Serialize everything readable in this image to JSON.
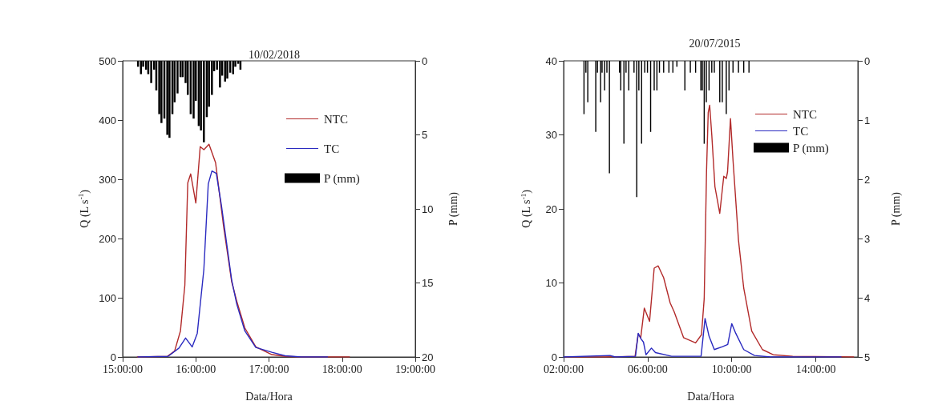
{
  "chart_data": [
    {
      "type": "line",
      "title": "10/02/2018",
      "xlabel": "Data/Hora",
      "ylabel": "Q (L s$^{-1}$)",
      "y2label": "P (mm)",
      "legend": "top right",
      "marker": "none",
      "line_style": "solid",
      "xlim": [
        15,
        19
      ],
      "xticks": [
        {
          "value": 15,
          "label": "15:00:00"
        },
        {
          "value": 16,
          "label": "16:00:00"
        },
        {
          "value": 17,
          "label": "17:00:00"
        },
        {
          "value": 18,
          "label": "18:00:00"
        },
        {
          "value": 19,
          "label": "19:00:00"
        }
      ],
      "ylim": [
        0,
        500
      ],
      "yticks": [
        0,
        100,
        200,
        300,
        400,
        500
      ],
      "y2lim": [
        20,
        0
      ],
      "y2ticks": [
        0,
        5,
        10,
        15,
        20
      ],
      "series": [
        {
          "name": "NTC",
          "color": "#b22a2a",
          "x": [
            15.2,
            15.61,
            15.71,
            15.79,
            15.85,
            15.89,
            15.93,
            16.0,
            16.06,
            16.11,
            16.18,
            16.27,
            16.38,
            16.49,
            16.56,
            16.67,
            16.82,
            17.04,
            17.22,
            17.44,
            18.1
          ],
          "values": [
            0,
            1,
            10,
            44,
            121,
            294,
            309,
            260,
            355,
            350,
            359,
            328,
            220,
            127,
            94,
            49,
            17,
            4,
            1,
            0,
            0
          ]
        },
        {
          "name": "TC",
          "color": "#2a2ac0",
          "x": [
            15.21,
            15.62,
            15.77,
            15.86,
            15.95,
            16.02,
            16.11,
            16.17,
            16.22,
            16.28,
            16.35,
            16.42,
            16.49,
            16.56,
            16.67,
            16.82,
            17.04,
            17.22,
            17.44,
            17.8
          ],
          "values": [
            0,
            1,
            15,
            32,
            17,
            40,
            148,
            292,
            314,
            310,
            256,
            193,
            130,
            89,
            44,
            16,
            8,
            2,
            0,
            0
          ]
        },
        {
          "name": "P (mm)",
          "type": "bar",
          "axis": "y2",
          "color": "#000000",
          "x": [
            15.21,
            15.25,
            15.28,
            15.32,
            15.35,
            15.39,
            15.43,
            15.46,
            15.5,
            15.53,
            15.57,
            15.61,
            15.64,
            15.68,
            15.71,
            15.75,
            15.79,
            15.82,
            15.86,
            15.89,
            15.93,
            15.97,
            16.0,
            16.04,
            16.07,
            16.11,
            16.15,
            16.18,
            16.22,
            16.25,
            16.29,
            16.33,
            16.36,
            16.4,
            16.43,
            16.47,
            16.51,
            16.54,
            16.58,
            16.61
          ],
          "values": [
            0.4,
            0.9,
            0.4,
            0.6,
            0.9,
            1.5,
            0.6,
            2.0,
            3.6,
            4.2,
            3.9,
            5.0,
            5.2,
            3.6,
            2.8,
            2.2,
            1.1,
            1.1,
            1.5,
            2.3,
            3.6,
            3.9,
            2.7,
            4.4,
            4.7,
            5.5,
            3.8,
            3.1,
            2.3,
            0.7,
            0.6,
            1.8,
            1.0,
            1.4,
            1.2,
            0.8,
            0.9,
            0.4,
            0.2,
            0.6
          ]
        }
      ]
    },
    {
      "type": "line",
      "title": "20/07/2015",
      "xlabel": "Data/Hora",
      "ylabel": "Q (L s$^{-1}$)",
      "y2label": "P (mm)",
      "legend": "top right",
      "marker": "none",
      "line_style": "solid",
      "xlim": [
        2,
        16
      ],
      "xticks": [
        {
          "value": 2,
          "label": "02:00:00"
        },
        {
          "value": 6,
          "label": "06:00:00"
        },
        {
          "value": 10,
          "label": "10:00:00"
        },
        {
          "value": 14,
          "label": "14:00:00"
        }
      ],
      "ylim": [
        0,
        40
      ],
      "yticks": [
        0,
        10,
        20,
        30,
        40
      ],
      "y2lim": [
        5,
        0
      ],
      "y2ticks": [
        0,
        1,
        2,
        3,
        4,
        5
      ],
      "series": [
        {
          "name": "NTC",
          "color": "#b22a2a",
          "x": [
            2.1,
            4.0,
            5.4,
            5.55,
            5.67,
            5.84,
            6.09,
            6.31,
            6.5,
            6.76,
            7.07,
            7.26,
            7.71,
            8.28,
            8.56,
            8.69,
            8.8,
            8.88,
            8.95,
            9.05,
            9.2,
            9.43,
            9.62,
            9.74,
            9.8,
            9.94,
            10.06,
            10.32,
            10.57,
            10.95,
            11.46,
            11.97,
            12.9,
            15.8
          ],
          "values": [
            0,
            0,
            0.1,
            3.1,
            2.6,
            6.6,
            4.8,
            12.0,
            12.3,
            10.7,
            7.3,
            6.1,
            2.6,
            1.9,
            3.0,
            7.9,
            25,
            33,
            34,
            30,
            23,
            19.4,
            24.4,
            24.1,
            25,
            32.2,
            26.6,
            15.8,
            9.3,
            3.5,
            1.0,
            0.3,
            0.1,
            0
          ]
        },
        {
          "name": "TC",
          "color": "#2a2ac0",
          "x": [
            2.0,
            4.21,
            4.47,
            5.42,
            5.55,
            5.67,
            5.8,
            5.92,
            6.18,
            6.37,
            7.14,
            8.54,
            8.73,
            8.92,
            9.17,
            9.56,
            9.81,
            10.0,
            10.19,
            10.57,
            11.08,
            11.84,
            15.2
          ],
          "values": [
            0,
            0.2,
            0,
            0.1,
            3.2,
            2.5,
            2.0,
            0.3,
            1.2,
            0.6,
            0.1,
            0.1,
            5.2,
            2.8,
            1.0,
            1.4,
            1.7,
            4.5,
            3.2,
            1.0,
            0.2,
            0,
            0
          ]
        },
        {
          "name": "P (mm)",
          "type": "bar",
          "axis": "y2",
          "color": "#000000",
          "x": [
            2.97,
            3.06,
            3.15,
            3.53,
            3.61,
            3.76,
            3.83,
            3.95,
            4.06,
            4.18,
            4.66,
            4.72,
            4.87,
            4.97,
            5.1,
            5.35,
            5.48,
            5.58,
            5.71,
            5.86,
            5.99,
            6.14,
            6.31,
            6.44,
            6.56,
            6.76,
            7.01,
            7.2,
            7.39,
            7.77,
            8.03,
            8.28,
            8.53,
            8.6,
            8.69,
            8.79,
            8.92,
            9.05,
            9.17,
            9.43,
            9.55,
            9.74,
            9.87,
            10.06,
            10.32,
            10.57,
            10.82
          ],
          "values": [
            0.9,
            0.2,
            0.7,
            1.2,
            0.2,
            0.7,
            0.2,
            0.5,
            0.2,
            1.9,
            0.2,
            0.5,
            1.4,
            0.2,
            0.5,
            0.2,
            2.3,
            0.5,
            1.4,
            0.2,
            0.2,
            1.2,
            0.5,
            0.5,
            0.2,
            0.2,
            0.2,
            0.2,
            0.1,
            0.5,
            0.2,
            0.2,
            0.5,
            0.5,
            1.4,
            0.7,
            0.5,
            0.2,
            0.2,
            0.7,
            0.7,
            0.9,
            0.5,
            0.2,
            0.2,
            0.2,
            0.2
          ]
        }
      ]
    }
  ]
}
